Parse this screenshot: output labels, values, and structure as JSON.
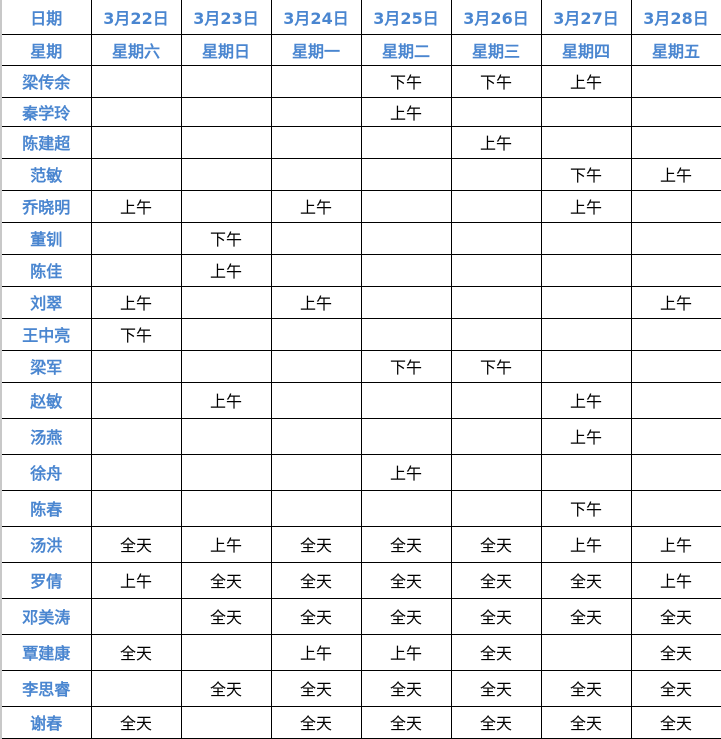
{
  "header": {
    "date_label": "日期",
    "weekday_label": "星期",
    "dates": [
      "3月22日",
      "3月23日",
      "3月24日",
      "3月25日",
      "3月26日",
      "3月27日",
      "3月28日"
    ],
    "weekdays": [
      "星期六",
      "星期日",
      "星期一",
      "星期二",
      "星期三",
      "星期四",
      "星期五"
    ]
  },
  "colors": {
    "header_text": "#4a86d0",
    "border": "#000000"
  },
  "rows": [
    {
      "name": "梁传余",
      "cells": [
        "",
        "",
        "",
        "下午",
        "下午",
        "上午",
        ""
      ]
    },
    {
      "name": "秦学玲",
      "cells": [
        "",
        "",
        "",
        "上午",
        "",
        "",
        ""
      ]
    },
    {
      "name": "陈建超",
      "cells": [
        "",
        "",
        "",
        "",
        "上午",
        "",
        ""
      ]
    },
    {
      "name": "范敏",
      "cells": [
        "",
        "",
        "",
        "",
        "",
        "下午",
        "上午"
      ]
    },
    {
      "name": "乔晓明",
      "cells": [
        "上午",
        "",
        "上午",
        "",
        "",
        "上午",
        ""
      ]
    },
    {
      "name": "董钏",
      "cells": [
        "",
        "下午",
        "",
        "",
        "",
        "",
        ""
      ]
    },
    {
      "name": "陈佳",
      "cells": [
        "",
        "上午",
        "",
        "",
        "",
        "",
        ""
      ]
    },
    {
      "name": "刘翠",
      "cells": [
        "上午",
        "",
        "上午",
        "",
        "",
        "",
        "上午"
      ]
    },
    {
      "name": "王中亮",
      "cells": [
        "下午",
        "",
        "",
        "",
        "",
        "",
        ""
      ]
    },
    {
      "name": "梁军",
      "cells": [
        "",
        "",
        "",
        "下午",
        "下午",
        "",
        ""
      ]
    },
    {
      "name": "赵敏",
      "cells": [
        "",
        "上午",
        "",
        "",
        "",
        "上午",
        ""
      ]
    },
    {
      "name": "汤燕",
      "cells": [
        "",
        "",
        "",
        "",
        "",
        "上午",
        ""
      ]
    },
    {
      "name": "徐舟",
      "cells": [
        "",
        "",
        "",
        "上午",
        "",
        "",
        ""
      ]
    },
    {
      "name": "陈春",
      "cells": [
        "",
        "",
        "",
        "",
        "",
        "下午",
        ""
      ]
    },
    {
      "name": "汤洪",
      "cells": [
        "全天",
        "上午",
        "全天",
        "全天",
        "全天",
        "上午",
        "上午"
      ]
    },
    {
      "name": "罗倩",
      "cells": [
        "上午",
        "全天",
        "全天",
        "全天",
        "全天",
        "全天",
        "上午"
      ]
    },
    {
      "name": "邓美涛",
      "cells": [
        "",
        "全天",
        "全天",
        "全天",
        "全天",
        "全天",
        "全天"
      ]
    },
    {
      "name": "覃建康",
      "cells": [
        "全天",
        "",
        "上午",
        "上午",
        "全天",
        "",
        "全天"
      ]
    },
    {
      "name": "李思睿",
      "cells": [
        "",
        "全天",
        "全天",
        "全天",
        "全天",
        "全天",
        "全天"
      ]
    },
    {
      "name": "谢春",
      "cells": [
        "全天",
        "",
        "全天",
        "全天",
        "全天",
        "全天",
        "全天"
      ]
    }
  ]
}
